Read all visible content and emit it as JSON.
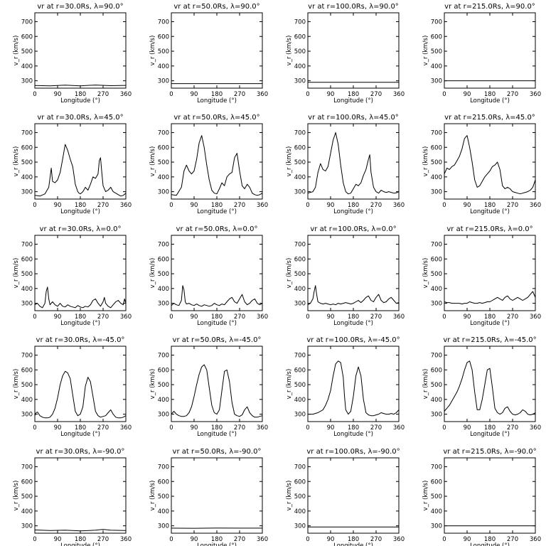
{
  "chart_data": {
    "type": "line",
    "grid": false,
    "layout": "5 rows x 4 columns of panels",
    "xlabel": "Longitude (°)",
    "ylabel": "v_r (km/s)",
    "xlim": [
      0,
      360
    ],
    "ylim": [
      250,
      760
    ],
    "xticks": [
      "0",
      "90",
      "180",
      "270",
      "360"
    ],
    "yticks": [
      "300",
      "400",
      "500",
      "600",
      "700"
    ],
    "panels": [
      {
        "title": "vr at r=30.0Rs, λ=90.0°",
        "x": [
          0,
          60,
          120,
          180,
          240,
          300,
          360
        ],
        "y": [
          268,
          266,
          270,
          266,
          271,
          267,
          269
        ]
      },
      {
        "title": "vr at r=50.0Rs, λ=90.0°",
        "x": [
          0,
          360
        ],
        "y": [
          281,
          281
        ]
      },
      {
        "title": "vr at r=100.0Rs, λ=90.0°",
        "x": [
          0,
          360
        ],
        "y": [
          290,
          290
        ]
      },
      {
        "title": "vr at r=215.0Rs, λ=90.0°",
        "x": [
          0,
          360
        ],
        "y": [
          300,
          300
        ]
      },
      {
        "title": "vr at r=30.0Rs, λ=45.0°",
        "x": [
          0,
          20,
          40,
          55,
          65,
          70,
          80,
          90,
          100,
          110,
          120,
          130,
          140,
          150,
          160,
          170,
          175,
          180,
          190,
          200,
          210,
          220,
          230,
          240,
          250,
          255,
          260,
          265,
          270,
          280,
          290,
          300,
          310,
          320,
          330,
          340,
          350,
          360
        ],
        "y": [
          275,
          270,
          285,
          330,
          460,
          370,
          360,
          380,
          430,
          520,
          620,
          580,
          520,
          470,
          350,
          300,
          290,
          285,
          300,
          330,
          310,
          350,
          400,
          390,
          420,
          510,
          530,
          430,
          340,
          300,
          310,
          330,
          300,
          290,
          280,
          270,
          275,
          290
        ]
      },
      {
        "title": "vr at r=50.0Rs, λ=45.0°",
        "x": [
          0,
          20,
          40,
          50,
          60,
          70,
          80,
          90,
          100,
          110,
          120,
          130,
          140,
          150,
          160,
          170,
          180,
          190,
          200,
          210,
          220,
          230,
          240,
          250,
          260,
          270,
          280,
          290,
          300,
          310,
          320,
          330,
          340,
          350,
          360
        ],
        "y": [
          280,
          275,
          330,
          440,
          480,
          440,
          420,
          440,
          520,
          630,
          680,
          600,
          480,
          380,
          310,
          290,
          285,
          320,
          360,
          340,
          400,
          420,
          430,
          530,
          560,
          440,
          340,
          320,
          350,
          330,
          290,
          280,
          275,
          280,
          290
        ]
      },
      {
        "title": "vr at r=100.0Rs, λ=45.0°",
        "x": [
          0,
          20,
          30,
          40,
          50,
          60,
          70,
          80,
          90,
          100,
          110,
          120,
          130,
          140,
          150,
          160,
          170,
          180,
          190,
          200,
          210,
          220,
          230,
          240,
          245,
          250,
          260,
          270,
          280,
          290,
          300,
          310,
          320,
          330,
          340,
          350,
          360
        ],
        "y": [
          290,
          300,
          330,
          430,
          490,
          450,
          440,
          470,
          560,
          650,
          700,
          620,
          480,
          360,
          300,
          285,
          290,
          320,
          350,
          340,
          360,
          410,
          450,
          520,
          550,
          430,
          330,
          300,
          290,
          310,
          300,
          295,
          300,
          295,
          290,
          292,
          300
        ]
      },
      {
        "title": "vr at r=215.0Rs, λ=45.0°",
        "x": [
          0,
          10,
          20,
          30,
          40,
          50,
          60,
          70,
          80,
          90,
          100,
          110,
          120,
          130,
          140,
          150,
          160,
          170,
          180,
          190,
          200,
          210,
          220,
          230,
          240,
          250,
          260,
          270,
          280,
          290,
          300,
          310,
          320,
          330,
          340,
          350,
          360
        ],
        "y": [
          420,
          460,
          450,
          470,
          480,
          510,
          540,
          590,
          660,
          680,
          600,
          500,
          380,
          330,
          340,
          370,
          400,
          420,
          440,
          470,
          480,
          500,
          450,
          340,
          320,
          330,
          320,
          300,
          295,
          290,
          285,
          290,
          295,
          300,
          310,
          330,
          380
        ]
      },
      {
        "title": "vr at r=30.0Rs, λ=0.0°",
        "x": [
          0,
          10,
          20,
          30,
          40,
          45,
          50,
          55,
          60,
          70,
          80,
          90,
          100,
          110,
          120,
          130,
          140,
          150,
          160,
          170,
          180,
          190,
          200,
          210,
          220,
          230,
          240,
          250,
          260,
          270,
          275,
          280,
          290,
          300,
          310,
          320,
          330,
          340,
          350,
          355,
          360
        ],
        "y": [
          290,
          300,
          280,
          270,
          300,
          380,
          410,
          330,
          290,
          310,
          290,
          280,
          300,
          280,
          275,
          290,
          280,
          275,
          270,
          285,
          275,
          270,
          280,
          275,
          290,
          320,
          330,
          300,
          280,
          310,
          340,
          300,
          280,
          270,
          290,
          310,
          320,
          300,
          290,
          330,
          300
        ]
      },
      {
        "title": "vr at r=50.0Rs, λ=0.0°",
        "x": [
          0,
          10,
          20,
          30,
          40,
          45,
          50,
          55,
          60,
          70,
          80,
          90,
          100,
          110,
          120,
          130,
          140,
          150,
          160,
          170,
          180,
          190,
          200,
          210,
          220,
          230,
          240,
          250,
          260,
          270,
          280,
          290,
          300,
          310,
          320,
          330,
          340,
          350,
          360
        ],
        "y": [
          285,
          300,
          290,
          285,
          320,
          420,
          390,
          310,
          295,
          300,
          290,
          285,
          295,
          285,
          280,
          290,
          285,
          280,
          285,
          300,
          290,
          285,
          295,
          290,
          310,
          330,
          340,
          310,
          300,
          330,
          360,
          310,
          290,
          300,
          320,
          330,
          300,
          290,
          300
        ]
      },
      {
        "title": "vr at r=100.0Rs, λ=0.0°",
        "x": [
          0,
          10,
          20,
          25,
          30,
          35,
          40,
          50,
          60,
          70,
          80,
          90,
          100,
          110,
          120,
          130,
          140,
          150,
          160,
          170,
          180,
          190,
          200,
          210,
          220,
          230,
          240,
          250,
          260,
          270,
          280,
          290,
          300,
          310,
          320,
          330,
          340,
          350,
          360
        ],
        "y": [
          290,
          300,
          330,
          380,
          420,
          360,
          310,
          300,
          295,
          300,
          295,
          290,
          295,
          290,
          300,
          295,
          300,
          305,
          300,
          295,
          300,
          310,
          320,
          305,
          320,
          340,
          350,
          320,
          310,
          340,
          360,
          320,
          305,
          310,
          330,
          340,
          320,
          300,
          305
        ]
      },
      {
        "title": "vr at r=215.0Rs, λ=0.0°",
        "x": [
          0,
          10,
          20,
          30,
          40,
          50,
          60,
          70,
          80,
          90,
          100,
          110,
          120,
          130,
          140,
          150,
          160,
          170,
          180,
          190,
          200,
          210,
          220,
          230,
          240,
          250,
          260,
          270,
          280,
          290,
          300,
          310,
          320,
          330,
          340,
          350,
          360
        ],
        "y": [
          310,
          305,
          305,
          300,
          300,
          300,
          300,
          295,
          300,
          300,
          310,
          305,
          300,
          300,
          305,
          300,
          305,
          310,
          310,
          320,
          330,
          340,
          330,
          320,
          340,
          350,
          330,
          320,
          330,
          340,
          330,
          320,
          330,
          340,
          360,
          380,
          340
        ]
      },
      {
        "title": "vr at r=30.0Rs, λ=-45.0°",
        "x": [
          0,
          5,
          10,
          20,
          30,
          40,
          50,
          60,
          70,
          80,
          90,
          100,
          110,
          120,
          130,
          140,
          150,
          160,
          170,
          180,
          190,
          200,
          210,
          220,
          230,
          240,
          250,
          260,
          270,
          280,
          290,
          300,
          310,
          320,
          330,
          340,
          350,
          360
        ],
        "y": [
          290,
          310,
          315,
          290,
          280,
          275,
          275,
          280,
          300,
          340,
          410,
          500,
          560,
          590,
          580,
          540,
          430,
          320,
          290,
          300,
          350,
          490,
          550,
          520,
          420,
          320,
          290,
          280,
          285,
          290,
          310,
          330,
          300,
          280,
          275,
          275,
          280,
          290
        ]
      },
      {
        "title": "vr at r=50.0Rs, λ=-45.0°",
        "x": [
          0,
          10,
          20,
          30,
          40,
          50,
          60,
          70,
          80,
          90,
          100,
          110,
          120,
          130,
          140,
          150,
          160,
          170,
          180,
          190,
          200,
          210,
          220,
          230,
          240,
          250,
          260,
          270,
          280,
          290,
          300,
          310,
          320,
          330,
          340,
          350,
          360
        ],
        "y": [
          300,
          320,
          300,
          290,
          285,
          285,
          290,
          310,
          350,
          420,
          500,
          570,
          620,
          635,
          600,
          480,
          360,
          310,
          300,
          330,
          460,
          590,
          600,
          520,
          380,
          300,
          290,
          285,
          295,
          330,
          350,
          310,
          290,
          280,
          280,
          285,
          290
        ]
      },
      {
        "title": "vr at r=100.0Rs, λ=-45.0°",
        "x": [
          0,
          20,
          40,
          60,
          70,
          80,
          90,
          100,
          110,
          120,
          130,
          140,
          145,
          150,
          160,
          170,
          180,
          190,
          200,
          210,
          220,
          230,
          240,
          250,
          260,
          270,
          280,
          290,
          300,
          310,
          320,
          330,
          340,
          350,
          360
        ],
        "y": [
          300,
          300,
          310,
          330,
          360,
          400,
          460,
          560,
          640,
          660,
          650,
          550,
          420,
          330,
          300,
          320,
          420,
          560,
          620,
          560,
          400,
          310,
          295,
          290,
          290,
          295,
          300,
          310,
          305,
          300,
          300,
          305,
          300,
          310,
          330
        ]
      },
      {
        "title": "vr at r=215.0Rs, λ=-45.0°",
        "x": [
          0,
          10,
          20,
          30,
          40,
          50,
          60,
          70,
          80,
          90,
          100,
          110,
          120,
          130,
          140,
          150,
          160,
          170,
          180,
          190,
          200,
          210,
          220,
          230,
          240,
          250,
          260,
          270,
          280,
          290,
          300,
          310,
          320,
          330,
          340,
          350,
          360
        ],
        "y": [
          320,
          340,
          360,
          390,
          420,
          450,
          490,
          540,
          600,
          650,
          660,
          600,
          450,
          330,
          330,
          400,
          500,
          600,
          610,
          480,
          340,
          310,
          300,
          310,
          340,
          350,
          320,
          300,
          295,
          300,
          310,
          330,
          320,
          300,
          295,
          300,
          310
        ]
      },
      {
        "title": "vr at r=30.0Rs, λ=-90.0°",
        "x": [
          0,
          60,
          120,
          180,
          240,
          270,
          300,
          360
        ],
        "y": [
          272,
          268,
          270,
          266,
          270,
          276,
          270,
          268
        ]
      },
      {
        "title": "vr at r=50.0Rs, λ=-90.0°",
        "x": [
          0,
          90,
          180,
          270,
          360
        ],
        "y": [
          284,
          283,
          285,
          284,
          284
        ]
      },
      {
        "title": "vr at r=100.0Rs, λ=-90.0°",
        "x": [
          0,
          360
        ],
        "y": [
          292,
          292
        ]
      },
      {
        "title": "vr at r=215.0Rs, λ=-90.0°",
        "x": [
          0,
          360
        ],
        "y": [
          300,
          300
        ]
      }
    ]
  }
}
